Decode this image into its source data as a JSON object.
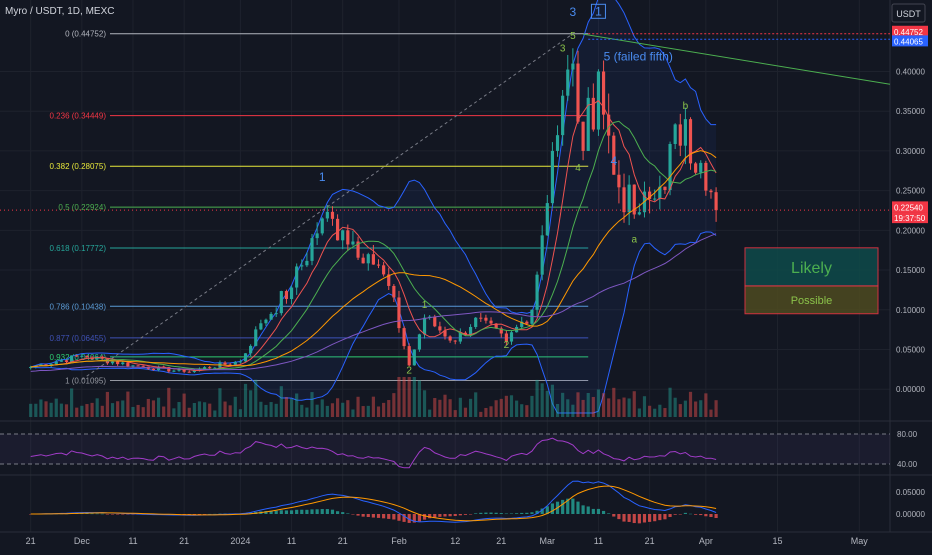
{
  "header": {
    "symbol_line": "Myro / USDT, 1D, MEXC",
    "currency_button": "USDT"
  },
  "fib_levels": [
    {
      "label": "0 (0.44752)",
      "value": 0.44752,
      "color": "#b2b5be"
    },
    {
      "label": "0.236 (0.34449)",
      "value": 0.34449,
      "color": "#f23645"
    },
    {
      "label": "0.382 (0.28075)",
      "value": 0.28075,
      "color": "#e8e83a"
    },
    {
      "label": "0.5 (0.22924)",
      "value": 0.22924,
      "color": "#4caf50"
    },
    {
      "label": "0.618 (0.17772)",
      "value": 0.17772,
      "color": "#26a69a"
    },
    {
      "label": "0.786 (0.10438)",
      "value": 0.10438,
      "color": "#5b9bd5"
    },
    {
      "label": "0.877 (0.06455)",
      "value": 0.06455,
      "color": "#3f51b5"
    },
    {
      "label": "0.932 (0.04064)",
      "value": 0.04064,
      "color": "#2ecc71"
    },
    {
      "label": "1 (0.01095)",
      "value": 0.01095,
      "color": "#9598a1"
    }
  ],
  "wave_labels": [
    {
      "text": "1",
      "date": "2024-01-17",
      "price": 0.262,
      "color": "#4a8cf0"
    },
    {
      "text": "1",
      "date": "2024-02-06",
      "price": 0.102,
      "color": "#8bc34a"
    },
    {
      "text": "2",
      "date": "2024-02-03",
      "price": 0.02,
      "color": "#8bc34a"
    },
    {
      "text": "2",
      "date": "2024-02-22",
      "price": 0.052,
      "color": "#8bc34a"
    },
    {
      "text": "3",
      "date": "2024-03-04",
      "price": 0.425,
      "color": "#8bc34a"
    },
    {
      "text": "5",
      "date": "2024-03-06",
      "price": 0.441,
      "color": "#8bc34a"
    },
    {
      "text": "4",
      "date": "2024-03-07",
      "price": 0.275,
      "color": "#8bc34a"
    },
    {
      "text": "3",
      "date": "2024-03-06",
      "price": 0.47,
      "color": "#4a8cf0"
    },
    {
      "text": "4",
      "date": "2024-03-14",
      "price": 0.282,
      "color": "#4a8cf0"
    },
    {
      "text": "a",
      "date": "2024-03-18",
      "price": 0.185,
      "color": "#8bc34a"
    },
    {
      "text": "b",
      "date": "2024-03-28",
      "price": 0.353,
      "color": "#8bc34a"
    }
  ],
  "annotations": {
    "boxed_one": "1",
    "failed_fifth": "5 (failed fifth)",
    "likely_zone": "Likely",
    "possible_zone": "Possible"
  },
  "price_axis": {
    "ticks": [
      "0.40000",
      "0.35000",
      "0.30000",
      "0.25000",
      "0.20000",
      "0.15000",
      "0.10000",
      "0.05000",
      "0.00000"
    ],
    "tag_high": "0.44752",
    "tag_blue": "0.44065",
    "tag_last": "0.22540",
    "tag_countdown": "19:37:50"
  },
  "rsi_axis": {
    "ticks": [
      "80.00",
      "40.00"
    ]
  },
  "macd_axis": {
    "ticks": [
      "0.05000",
      "0.00000"
    ]
  },
  "time_axis": {
    "labels": [
      {
        "text": "21",
        "date": "2023-11-21"
      },
      {
        "text": "Dec",
        "date": "2023-12-01"
      },
      {
        "text": "11",
        "date": "2023-12-11"
      },
      {
        "text": "21",
        "date": "2023-12-21"
      },
      {
        "text": "2024",
        "date": "2024-01-01"
      },
      {
        "text": "11",
        "date": "2024-01-11"
      },
      {
        "text": "21",
        "date": "2024-01-21"
      },
      {
        "text": "Feb",
        "date": "2024-02-01"
      },
      {
        "text": "12",
        "date": "2024-02-12"
      },
      {
        "text": "21",
        "date": "2024-02-21"
      },
      {
        "text": "Mar",
        "date": "2024-03-01"
      },
      {
        "text": "11",
        "date": "2024-03-11"
      },
      {
        "text": "21",
        "date": "2024-03-21"
      },
      {
        "text": "Apr",
        "date": "2024-04-01"
      },
      {
        "text": "15",
        "date": "2024-04-15"
      },
      {
        "text": "May",
        "date": "2024-05-01"
      }
    ]
  },
  "colors": {
    "up": "#26a69a",
    "down": "#ef5350",
    "background": "#131722",
    "grid": "#1e222d",
    "text": "#b2b5be",
    "rsi": "#a13cc8",
    "macd": "#2962ff",
    "signal": "#ff9800"
  },
  "chart_data": {
    "type": "candlestick",
    "title": "Myro / USDT, 1D, MEXC",
    "ylim": [
      -0.035,
      0.49
    ],
    "xlim": [
      "2023-11-15",
      "2024-05-07"
    ],
    "log_scale": false,
    "grid": true,
    "key_prices": [
      {
        "date": "2023-11-21",
        "close": 0.028
      },
      {
        "date": "2023-12-01",
        "close": 0.042
      },
      {
        "date": "2023-12-11",
        "close": 0.03
      },
      {
        "date": "2023-12-21",
        "close": 0.022
      },
      {
        "date": "2024-01-01",
        "close": 0.035
      },
      {
        "date": "2024-01-05",
        "close": 0.083
      },
      {
        "date": "2024-01-11",
        "close": 0.128
      },
      {
        "date": "2024-01-17",
        "close": 0.215
      },
      {
        "date": "2024-01-21",
        "close": 0.2
      },
      {
        "date": "2024-01-26",
        "close": 0.17
      },
      {
        "date": "2024-01-30",
        "close": 0.13
      },
      {
        "date": "2024-02-03",
        "close": 0.03
      },
      {
        "date": "2024-02-06",
        "close": 0.09
      },
      {
        "date": "2024-02-12",
        "close": 0.06
      },
      {
        "date": "2024-02-16",
        "close": 0.09
      },
      {
        "date": "2024-02-22",
        "close": 0.06
      },
      {
        "date": "2024-02-27",
        "close": 0.1
      },
      {
        "date": "2024-03-02",
        "close": 0.3
      },
      {
        "date": "2024-03-06",
        "close": 0.41
      },
      {
        "date": "2024-03-08",
        "close": 0.3
      },
      {
        "date": "2024-03-11",
        "close": 0.4
      },
      {
        "date": "2024-03-14",
        "close": 0.27
      },
      {
        "date": "2024-03-18",
        "close": 0.22
      },
      {
        "date": "2024-03-22",
        "close": 0.24
      },
      {
        "date": "2024-03-28",
        "close": 0.34
      },
      {
        "date": "2024-04-01",
        "close": 0.25
      },
      {
        "date": "2024-04-03",
        "close": 0.2254
      }
    ],
    "last_price": 0.2254,
    "trendline_from": {
      "date": "2024-03-08",
      "price": 0.447
    },
    "trendline_to": {
      "date": "2024-05-07",
      "price": 0.384
    },
    "likely_zone": [
      0.13,
      0.178
    ],
    "possible_zone": [
      0.095,
      0.13
    ]
  }
}
